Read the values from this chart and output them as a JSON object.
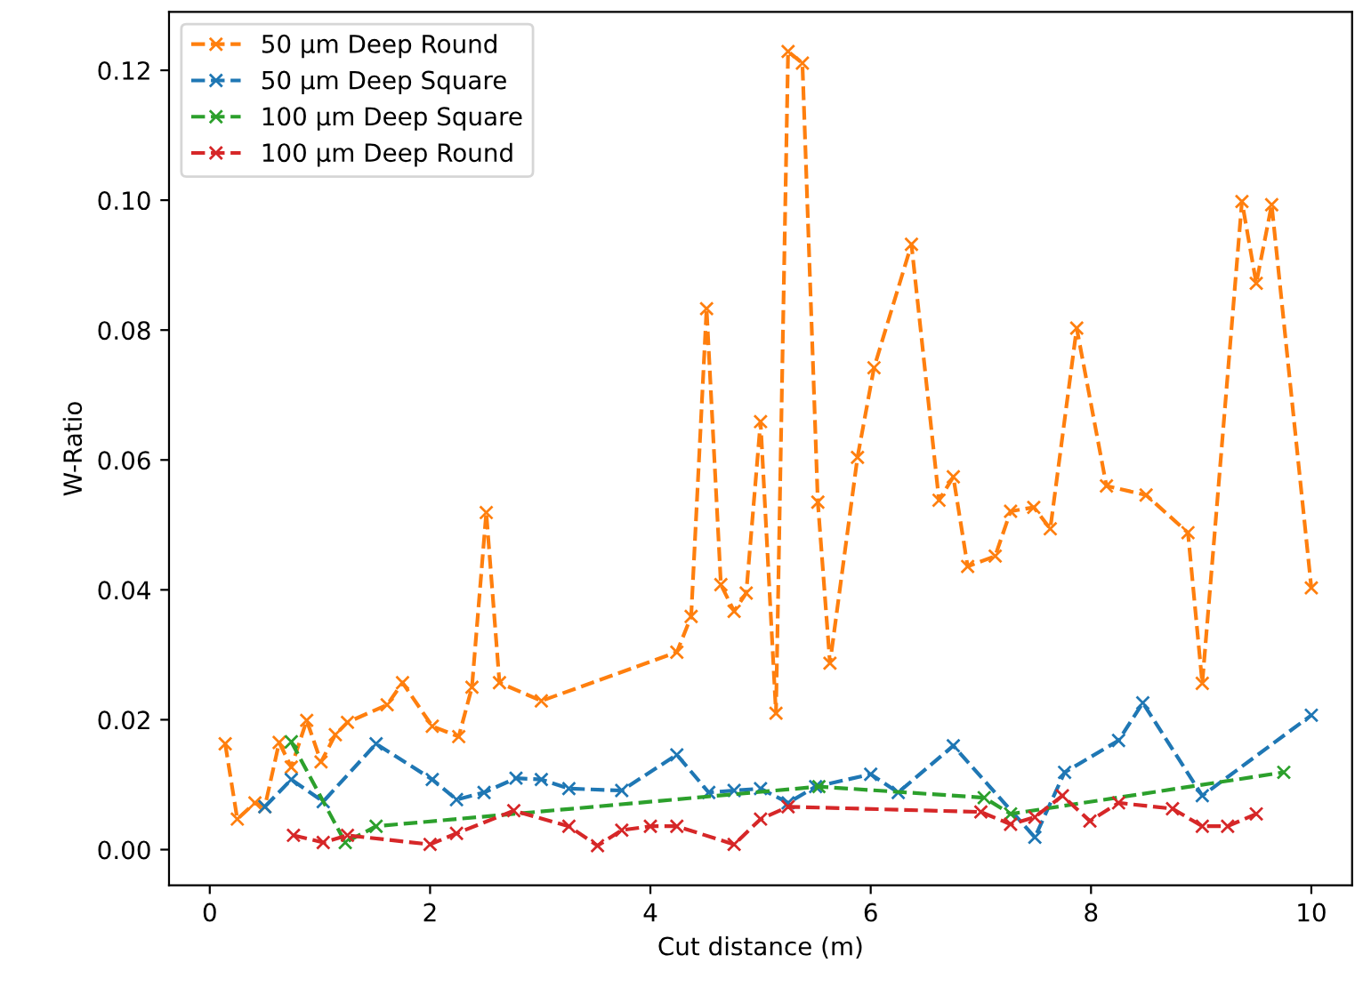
{
  "chart_data": {
    "type": "line",
    "xlabel": "Cut distance (m)",
    "ylabel": "W-Ratio",
    "xlim": [
      -0.37,
      10.37
    ],
    "xticks": [
      0,
      2,
      4,
      6,
      8,
      10
    ],
    "ylim": [
      -0.0055,
      0.129
    ],
    "yticks": [
      {
        "value": 0,
        "label": "0.00"
      },
      {
        "value": 0.02,
        "label": "0.02"
      },
      {
        "value": 0.04,
        "label": "0.04"
      },
      {
        "value": 0.06,
        "label": "0.06"
      },
      {
        "value": 0.08,
        "label": "0.08"
      },
      {
        "value": 0.1,
        "label": "0.10"
      },
      {
        "value": 0.12,
        "label": "0.12"
      }
    ],
    "grid": false,
    "legend": "top left",
    "marker": "cross",
    "line_style": "dashed",
    "series": [
      {
        "name": "50 µm Deep Round",
        "color": "#ff7f0e",
        "x": [
          0.14,
          0.25,
          0.41,
          0.5,
          0.63,
          0.74,
          0.88,
          1.01,
          1.14,
          1.25,
          1.61,
          1.75,
          2.02,
          2.26,
          2.38,
          2.51,
          2.63,
          3.01,
          4.24,
          4.37,
          4.51,
          4.64,
          4.76,
          4.87,
          5.0,
          5.14,
          5.25,
          5.38,
          5.52,
          5.63,
          5.88,
          6.03,
          6.37,
          6.62,
          6.75,
          6.88,
          7.13,
          7.27,
          7.48,
          7.63,
          7.87,
          8.14,
          8.5,
          8.88,
          9.01,
          9.37,
          9.5,
          9.64,
          10.0
        ],
        "values": [
          0.0163,
          0.0047,
          0.0072,
          0.0066,
          0.0165,
          0.0127,
          0.0199,
          0.0135,
          0.0177,
          0.0196,
          0.0223,
          0.0257,
          0.019,
          0.0174,
          0.025,
          0.0519,
          0.0257,
          0.0229,
          0.0304,
          0.0359,
          0.0833,
          0.0408,
          0.0367,
          0.0395,
          0.0659,
          0.021,
          0.1229,
          0.1211,
          0.0535,
          0.0287,
          0.0604,
          0.0742,
          0.0932,
          0.0538,
          0.0574,
          0.0436,
          0.0452,
          0.0521,
          0.0527,
          0.0494,
          0.0803,
          0.056,
          0.0546,
          0.0488,
          0.0256,
          0.0998,
          0.0872,
          0.0993,
          0.0403
        ]
      },
      {
        "name": "50 µm Deep Square",
        "color": "#1f77b4",
        "x": [
          0.5,
          0.74,
          1.03,
          1.51,
          2.02,
          2.24,
          2.49,
          2.78,
          3.01,
          3.26,
          3.74,
          4.24,
          4.53,
          4.76,
          5.0,
          5.25,
          5.5,
          6.0,
          6.25,
          6.75,
          7.49,
          7.76,
          8.25,
          8.47,
          9.01,
          10.0
        ],
        "values": [
          0.0066,
          0.0108,
          0.0074,
          0.0163,
          0.0108,
          0.0077,
          0.0088,
          0.011,
          0.0108,
          0.0094,
          0.0091,
          0.0146,
          0.0088,
          0.0091,
          0.0094,
          0.0072,
          0.0097,
          0.0116,
          0.0088,
          0.016,
          0.0019,
          0.0119,
          0.0168,
          0.0226,
          0.0083,
          0.0207
        ]
      },
      {
        "name": "100 µm Deep Square",
        "color": "#2ca02c",
        "x": [
          0.74,
          1.23,
          1.51,
          5.53,
          7.03,
          7.27,
          9.75
        ],
        "values": [
          0.0166,
          0.0011,
          0.0036,
          0.0097,
          0.008,
          0.0055,
          0.0119
        ]
      },
      {
        "name": "100 µm Deep Round",
        "color": "#d62728",
        "x": [
          0.76,
          1.03,
          1.25,
          2.0,
          2.24,
          2.76,
          3.26,
          3.52,
          3.74,
          4.0,
          4.24,
          4.76,
          5.0,
          5.25,
          7.0,
          7.27,
          7.49,
          7.74,
          7.99,
          8.25,
          8.74,
          9.01,
          9.24,
          9.5
        ],
        "values": [
          0.0022,
          0.0011,
          0.0022,
          0.0008,
          0.0025,
          0.006,
          0.0036,
          0.0006,
          0.003,
          0.0036,
          0.0036,
          0.0008,
          0.0047,
          0.0066,
          0.0058,
          0.0039,
          0.005,
          0.0083,
          0.0044,
          0.0072,
          0.0063,
          0.0036,
          0.0036,
          0.0055
        ]
      }
    ]
  }
}
